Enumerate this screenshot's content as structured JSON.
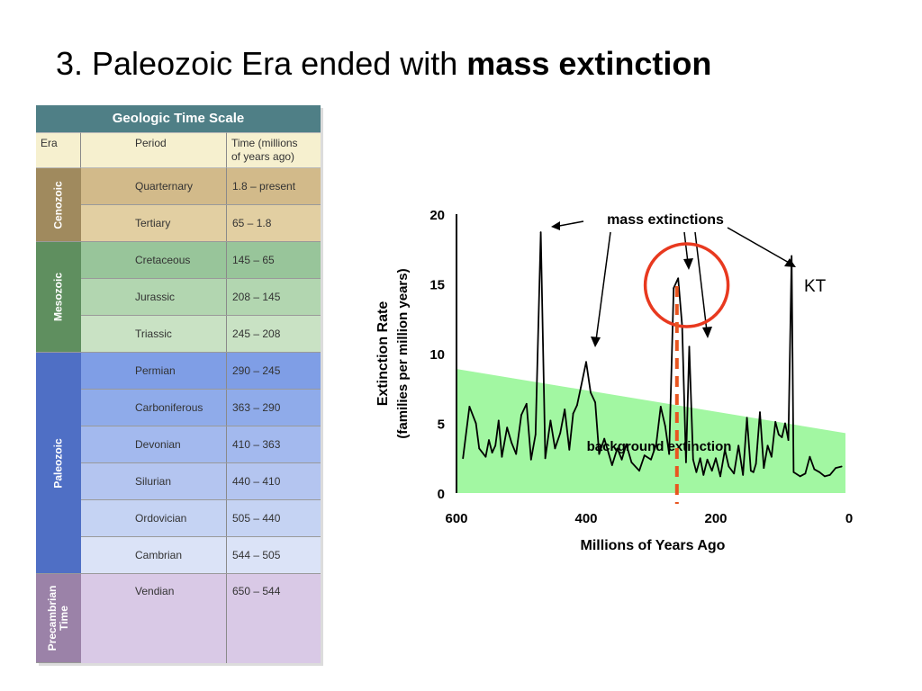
{
  "slide": {
    "title_prefix": "3. Paleozoic Era ended with ",
    "title_bold": "mass extinction"
  },
  "time_scale": {
    "title": "Geologic Time Scale",
    "headers": {
      "era": "Era",
      "period": "Period",
      "time_line1": "Time (millions",
      "time_line2": "of years ago)"
    },
    "eras": [
      {
        "name": "Cenozoic",
        "color": "#a08a5e"
      },
      {
        "name": "Mesozoic",
        "color": "#5f8f5f"
      },
      {
        "name": "Paleozoic",
        "color": "#4f6fc5"
      },
      {
        "name": "Precambrian Time",
        "color": "#9b82a8"
      }
    ],
    "periods": [
      {
        "name": "Quarternary",
        "time": "1.8 – present",
        "color": "#d2ba8a"
      },
      {
        "name": "Tertiary",
        "time": "65 – 1.8",
        "color": "#e2cfa2"
      },
      {
        "name": "Cretaceous",
        "time": "145 – 65",
        "color": "#98c59a"
      },
      {
        "name": "Jurassic",
        "time": "208 – 145",
        "color": "#b2d6b0"
      },
      {
        "name": "Triassic",
        "time": "245 – 208",
        "color": "#c9e2c4"
      },
      {
        "name": "Permian",
        "time": "290 – 245",
        "color": "#7f9ee6"
      },
      {
        "name": "Carboniferous",
        "time": "363 – 290",
        "color": "#8fabea"
      },
      {
        "name": "Devonian",
        "time": "410 – 363",
        "color": "#a3b9ee"
      },
      {
        "name": "Silurian",
        "time": "440 – 410",
        "color": "#b4c5f0"
      },
      {
        "name": "Ordovician",
        "time": "505 – 440",
        "color": "#c5d3f3"
      },
      {
        "name": "Cambrian",
        "time": "544 – 505",
        "color": "#dbe3f7"
      },
      {
        "name": "Vendian",
        "time": "650 – 544",
        "color": "#d9c9e6"
      }
    ]
  },
  "chart_data": {
    "type": "line",
    "xlabel": "Millions of Years Ago",
    "ylabel_line1": "Extinction Rate",
    "ylabel_line2": "(families per million years)",
    "xlim": [
      600,
      0
    ],
    "ylim": [
      0,
      20
    ],
    "x_ticks": [
      "600",
      "400",
      "200",
      "0"
    ],
    "y_ticks": [
      "0",
      "5",
      "10",
      "15",
      "20"
    ],
    "series": [
      {
        "name": "Extinction rate",
        "x": [
          590,
          580,
          570,
          565,
          555,
          550,
          545,
          540,
          535,
          530,
          522,
          515,
          508,
          500,
          492,
          485,
          478,
          470,
          463,
          455,
          448,
          440,
          433,
          426,
          420,
          414,
          408,
          400,
          393,
          386,
          380,
          372,
          360,
          352,
          345,
          338,
          330,
          318,
          310,
          300,
          292,
          285,
          278,
          272,
          265,
          258,
          252,
          246,
          241,
          235,
          230,
          224,
          219,
          213,
          206,
          200,
          193,
          186,
          180,
          172,
          165,
          158,
          152,
          146,
          142,
          138,
          132,
          126,
          120,
          114,
          108,
          103,
          98,
          93,
          88,
          83,
          80,
          70,
          62,
          55,
          48,
          40,
          32,
          24,
          15,
          6
        ],
        "y": [
          2.5,
          6.2,
          5.0,
          3.2,
          2.6,
          3.8,
          2.9,
          3.4,
          5.2,
          2.6,
          4.7,
          3.6,
          2.8,
          5.6,
          6.4,
          2.4,
          4.2,
          18.7,
          2.5,
          5.2,
          3.2,
          4.3,
          6.0,
          3.1,
          5.7,
          6.3,
          7.6,
          9.4,
          7.2,
          6.5,
          2.8,
          3.9,
          2.0,
          3.2,
          2.4,
          3.5,
          2.2,
          1.6,
          2.7,
          2.4,
          3.5,
          6.2,
          4.8,
          2.8,
          14.7,
          15.4,
          12.0,
          2.2,
          10.5,
          2.4,
          1.5,
          2.5,
          1.3,
          2.4,
          1.6,
          2.5,
          1.2,
          3.1,
          1.9,
          1.4,
          3.4,
          1.3,
          5.4,
          1.6,
          1.5,
          2.1,
          5.8,
          1.8,
          3.4,
          2.6,
          5.1,
          4.2,
          4.0,
          5.0,
          3.8,
          17.0,
          1.5,
          1.2,
          1.4,
          2.6,
          1.7,
          1.5,
          1.2,
          1.3,
          1.8,
          1.9
        ]
      }
    ],
    "background_band": {
      "y_left": 8.9,
      "y_right": 4.3
    },
    "annotations": {
      "mass_extinctions": "mass extinctions",
      "background_extinction": "background extinction",
      "kt": "KT"
    },
    "highlight_circle_x": 245,
    "highlight_line_x": 260,
    "colors": {
      "band": "#a2f7a2",
      "line": "#000000",
      "highlight": "#e8391f",
      "dashed": "#e85520"
    }
  }
}
